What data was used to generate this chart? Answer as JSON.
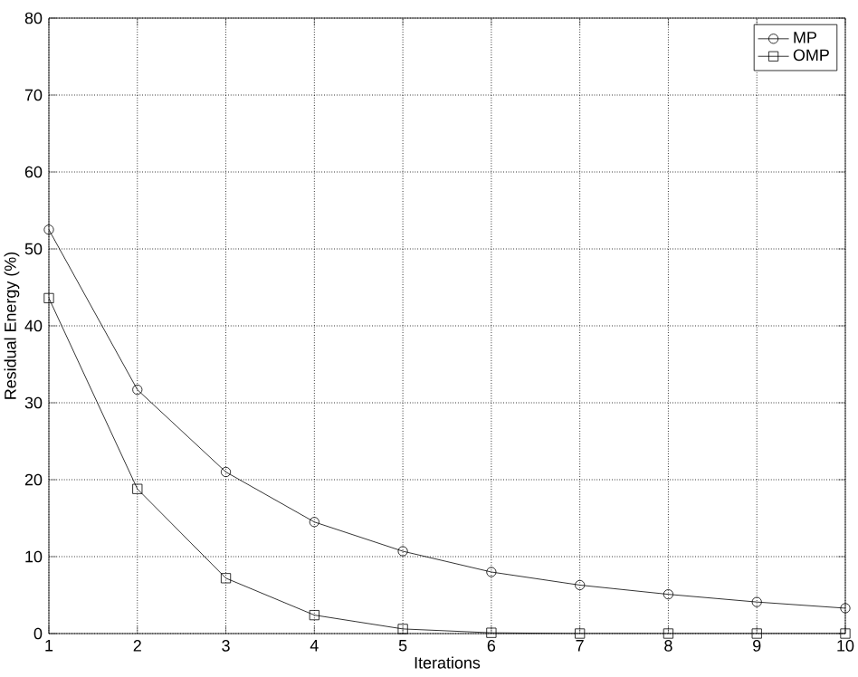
{
  "chart_data": {
    "type": "line",
    "xlabel": "Iterations",
    "ylabel": "Residual Energy (%)",
    "x": [
      1,
      2,
      3,
      4,
      5,
      6,
      7,
      8,
      9,
      10
    ],
    "series": [
      {
        "name": "MP",
        "color": "#000000",
        "marker": "circle",
        "values": [
          52.5,
          31.7,
          21,
          14.5,
          10.7,
          8,
          6.3,
          5.1,
          4.1,
          3.3
        ]
      },
      {
        "name": "OMP",
        "color": "#000000",
        "marker": "square",
        "values": [
          43.6,
          18.8,
          7.2,
          2.4,
          0.6,
          0.1,
          0,
          0,
          0,
          0
        ]
      }
    ],
    "xlim": [
      1,
      10
    ],
    "xticks": [
      1,
      2,
      3,
      4,
      5,
      6,
      7,
      8,
      9,
      10
    ],
    "ylim": [
      0,
      80
    ],
    "yticks": [
      0,
      10,
      20,
      30,
      40,
      50,
      60,
      70,
      80
    ],
    "grid": true,
    "legend": "top right",
    "line_style": "solid"
  }
}
